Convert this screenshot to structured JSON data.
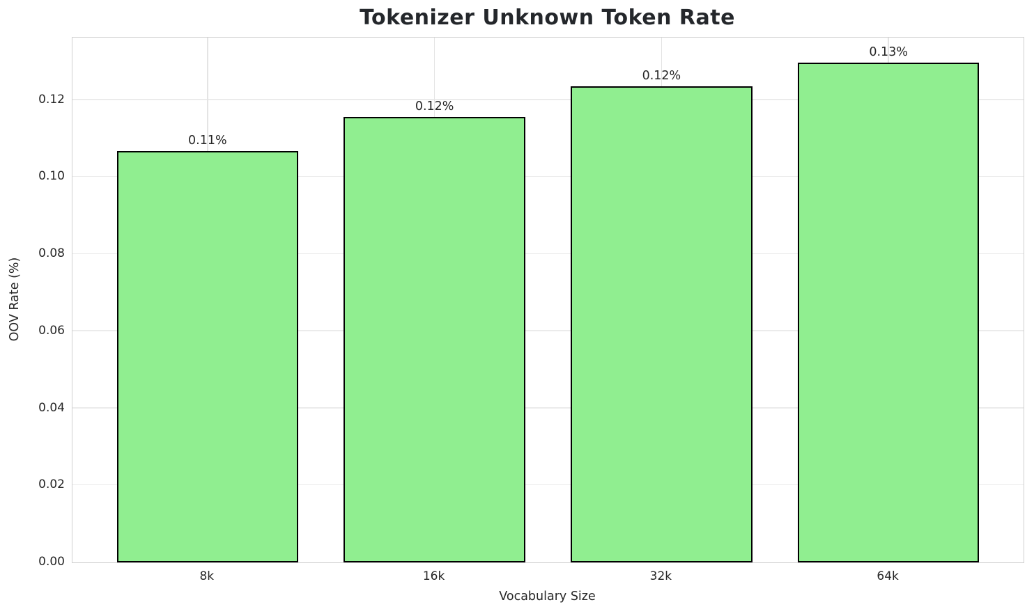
{
  "chart_data": {
    "type": "bar",
    "title": "Tokenizer Unknown Token Rate",
    "xlabel": "Vocabulary Size",
    "ylabel": "OOV Rate (%)",
    "categories": [
      "8k",
      "16k",
      "32k",
      "64k"
    ],
    "values": [
      0.1067,
      0.1156,
      0.1235,
      0.1297
    ],
    "bar_labels": [
      "0.11%",
      "0.12%",
      "0.12%",
      "0.13%"
    ],
    "yticks": [
      0.0,
      0.02,
      0.04,
      0.06,
      0.08,
      0.1,
      0.12
    ],
    "ytick_labels": [
      "0.00",
      "0.02",
      "0.04",
      "0.06",
      "0.08",
      "0.10",
      "0.12"
    ],
    "ylim": [
      0,
      0.1362
    ],
    "grid": true,
    "legend": null,
    "bar_color": "#90EE90",
    "bar_edge_color": "#000000",
    "grid_color": "#ebebeb",
    "spine_color": "#cfcfcf",
    "text_color": "#262626"
  }
}
